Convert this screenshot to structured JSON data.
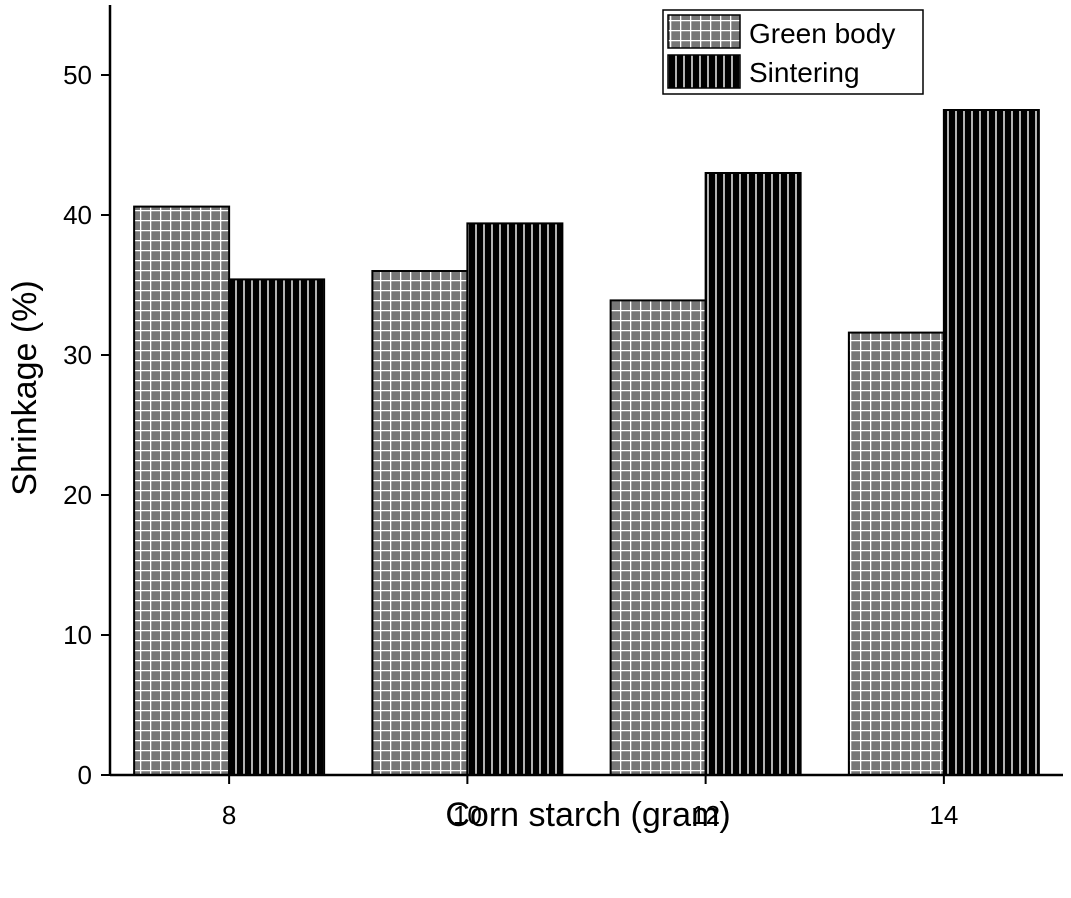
{
  "chart_data": {
    "type": "bar",
    "categories": [
      "8",
      "10",
      "12",
      "14"
    ],
    "series": [
      {
        "name": "Green body",
        "values": [
          40.6,
          36.0,
          33.9,
          31.6
        ],
        "pattern": "grid",
        "fill": "#777777"
      },
      {
        "name": "Sintering",
        "values": [
          35.4,
          39.4,
          43.0,
          47.5
        ],
        "pattern": "vertical-lines",
        "fill": "#000000"
      }
    ],
    "xlabel": "Corn starch (gram)",
    "ylabel": "Shrinkage (%)",
    "ylim": [
      0,
      55
    ],
    "yticks": [
      0,
      10,
      20,
      30,
      40,
      50
    ],
    "grid": false,
    "legend_position": "top-right"
  }
}
